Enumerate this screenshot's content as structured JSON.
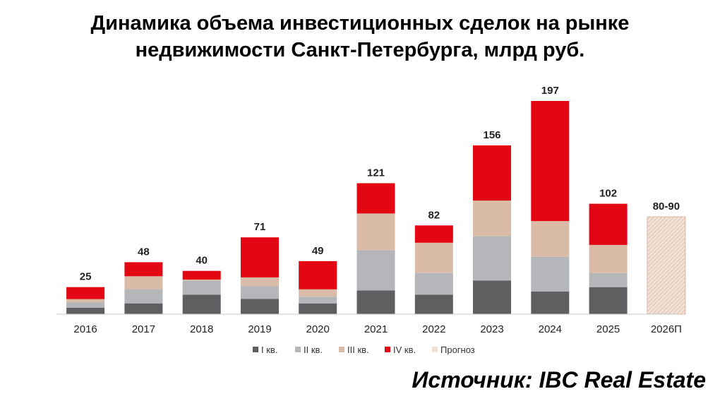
{
  "title_lines": [
    "Динамика объема инвестиционных сделок на рынке",
    "недвижимости Санкт-Петербурга, млрд руб."
  ],
  "source": "Источник: IBC Real Estate",
  "colors": {
    "q1": "#5f5f61",
    "q2": "#b5b6b9",
    "q3": "#d9bba7",
    "q4": "#e30613",
    "forecast": "#f2e1d6",
    "forecast_hatch": "#d8b8a4",
    "axis": "#c8c8c8"
  },
  "chart_data": {
    "type": "bar",
    "stacked": true,
    "categories": [
      "2016",
      "2017",
      "2018",
      "2019",
      "2020",
      "2021",
      "2022",
      "2023",
      "2024",
      "2025",
      "2026П"
    ],
    "series": [
      {
        "name": "I кв.",
        "key": "q1",
        "values": [
          6,
          10,
          18,
          14,
          10,
          22,
          18,
          31,
          21,
          25,
          null
        ]
      },
      {
        "name": "II кв.",
        "key": "q2",
        "values": [
          5,
          13,
          13,
          12,
          6,
          37,
          20,
          41,
          32,
          13,
          null
        ]
      },
      {
        "name": "III кв.",
        "key": "q3",
        "values": [
          3,
          12,
          1,
          8,
          7,
          34,
          28,
          33,
          33,
          26,
          null
        ]
      },
      {
        "name": "IV кв.",
        "key": "q4",
        "values": [
          11,
          13,
          8,
          37,
          26,
          28,
          16,
          51,
          111,
          38,
          null
        ]
      },
      {
        "name": "Прогноз",
        "key": "forecast",
        "values": [
          null,
          null,
          null,
          null,
          null,
          null,
          null,
          null,
          null,
          null,
          90
        ]
      }
    ],
    "totals": [
      "25",
      "48",
      "40",
      "71",
      "49",
      "121",
      "82",
      "156",
      "197",
      "102",
      "80-90"
    ],
    "ylim": [
      0,
      200
    ],
    "grid": false,
    "legend_position": "bottom"
  }
}
